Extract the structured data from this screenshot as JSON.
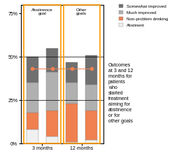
{
  "chart_data": {
    "type": "bar",
    "stacked": true,
    "categories": [
      null,
      null,
      null,
      null
    ],
    "groups": [
      {
        "label": "3 months",
        "annotation": "Abstinence\ngoal",
        "size": 2,
        "color": "#ff9900"
      },
      {
        "label": "12 months",
        "annotation": "Other\ngoals",
        "size": 2,
        "color": "#ff9900"
      }
    ],
    "series": [
      {
        "name": "Abstinent",
        "color": "#f0f0f0",
        "values": [
          8,
          4,
          1,
          2
        ]
      },
      {
        "name": "Non-problem drinking",
        "color": "#f08050",
        "values": [
          10,
          15,
          22,
          17
        ]
      },
      {
        "name": "Much improved",
        "color": "#b0b0b0",
        "values": [
          17,
          22,
          12,
          15
        ]
      },
      {
        "name": "Somewhat improved",
        "color": "#707070",
        "values": [
          15,
          14,
          12,
          17
        ]
      }
    ],
    "markers": {
      "value": 43,
      "color": "#f08050"
    },
    "reference_lines": [
      25,
      50
    ],
    "ylim": [
      0,
      80
    ],
    "yticks": [
      {
        "value": 0,
        "label": "0%"
      },
      {
        "value": 25,
        "label": "25%"
      },
      {
        "value": 50,
        "label": "50%"
      },
      {
        "value": 75,
        "label": "75%"
      }
    ],
    "legend": "upper right",
    "annotations": [
      "Outcomes\nat 3 and 12\nmonths for\npatients\nwho\nstarted\ntreatment\naiming for\nabstinence\nor for\nother goals"
    ]
  }
}
